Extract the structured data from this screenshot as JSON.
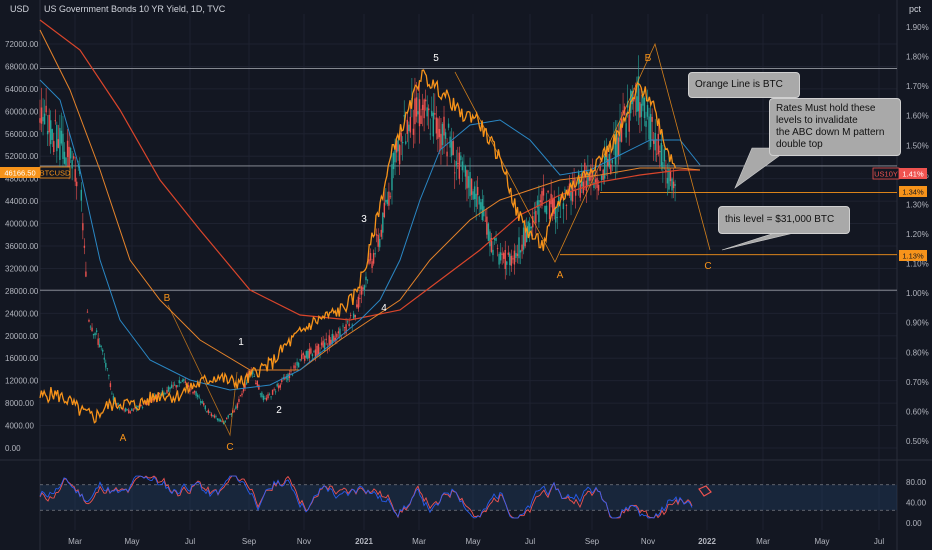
{
  "header": {
    "left_unit": "USD",
    "title": "US Government Bonds 10 YR Yield, 1D, TVC",
    "right_unit": "pct"
  },
  "colors": {
    "background": "#131722",
    "btc_line": "#f7931a",
    "ema_slow": "#d9452b",
    "ema_mid": "#e5832a",
    "ma_blue": "#2a87c4",
    "candle_up": "#26a69a",
    "candle_down": "#ef5350",
    "rsi_blue": "#2962ff",
    "rsi_red": "#ef5350",
    "level_orange": "#f7931a",
    "badge_red": "#ef5350"
  },
  "annotations": {
    "orange_line_note": "Orange Line is BTC",
    "rates_note": "Rates Must hold these\nlevels to invalidate\nthe ABC down M pattern\ndouble top",
    "level_note": "this level = $31,000 BTC"
  },
  "badges": {
    "btc_price": "46166.50",
    "btc_symbol": "BTCUSD",
    "us10y_symbol": "US10Y",
    "us10y_value": "1.41%",
    "level_1": "1.34%",
    "level_2": "1.13%"
  },
  "chart_data": {
    "type": "line",
    "left_axis": {
      "unit": "USD",
      "ticks": [
        "72000.00",
        "68000.00",
        "64000.00",
        "60000.00",
        "56000.00",
        "52000.00",
        "48000.00",
        "44000.00",
        "40000.00",
        "36000.00",
        "32000.00",
        "28000.00",
        "24000.00",
        "20000.00",
        "16000.00",
        "12000.00",
        "8000.00",
        "4000.00",
        "0.00"
      ],
      "ylim": [
        0,
        74000
      ]
    },
    "right_axis": {
      "unit": "pct",
      "ticks": [
        "1.90%",
        "1.80%",
        "1.70%",
        "1.60%",
        "1.50%",
        "1.40%",
        "1.30%",
        "1.20%",
        "1.10%",
        "1.00%",
        "0.90%",
        "0.80%",
        "0.70%",
        "0.60%",
        "0.50%"
      ],
      "ylim": [
        0.45,
        1.95
      ]
    },
    "x_axis": {
      "ticks": [
        "Mar",
        "May",
        "Jul",
        "Sep",
        "Nov",
        "2021",
        "Mar",
        "May",
        "Jul",
        "Sep",
        "Nov",
        "2022",
        "Mar",
        "May",
        "Jul"
      ]
    },
    "wave_labels": [
      {
        "label": "A",
        "year": 2020.32,
        "price": 3000,
        "color": "orange"
      },
      {
        "label": "B",
        "year": 2020.48,
        "price": 25500,
        "color": "orange"
      },
      {
        "label": "C",
        "year": 2020.65,
        "price": -500,
        "color": "orange"
      },
      {
        "label": "1",
        "year": 2020.7,
        "price": 15500,
        "color": "white"
      },
      {
        "label": "2",
        "year": 2020.74,
        "price": 6000,
        "color": "white"
      },
      {
        "label": "3",
        "year": 2021.0,
        "price": 39000,
        "color": "white"
      },
      {
        "label": "4",
        "year": 2021.05,
        "price": 21500,
        "color": "white"
      },
      {
        "label": "5",
        "year": 2021.2,
        "price": 66000,
        "color": "white"
      },
      {
        "label": "A",
        "year": 2021.56,
        "price": 27500,
        "color": "orange"
      },
      {
        "label": "B",
        "year": 2021.85,
        "price": 66000,
        "color": "orange"
      },
      {
        "label": "C",
        "year": 2021.95,
        "price": 30000,
        "color": "orange"
      }
    ],
    "series": [
      {
        "name": "BTCUSD",
        "x": [
          2020.08,
          2020.12,
          2020.16,
          2020.2,
          2020.22,
          2020.26,
          2020.3,
          2020.34,
          2020.38,
          2020.42,
          2020.46,
          2020.5,
          2020.54,
          2020.58,
          2020.62,
          2020.66,
          2020.7,
          2020.74,
          2020.78,
          2020.82,
          2020.86,
          2020.9,
          2020.94,
          2020.98,
          2021.0,
          2021.04,
          2021.08,
          2021.12,
          2021.16,
          2021.2,
          2021.24,
          2021.28,
          2021.32,
          2021.36,
          2021.4,
          2021.44,
          2021.48,
          2021.52,
          2021.56,
          2021.6,
          2021.64,
          2021.68,
          2021.72,
          2021.76,
          2021.8,
          2021.84,
          2021.88,
          2021.92,
          2021.95
        ],
        "y": [
          60000,
          56000,
          52000,
          47000,
          24000,
          18000,
          8000,
          6500,
          7500,
          9000,
          10500,
          12000,
          9500,
          6000,
          4500,
          7500,
          14000,
          8500,
          11000,
          13500,
          16500,
          17500,
          19500,
          21000,
          23000,
          31000,
          38000,
          50000,
          58000,
          60500,
          58000,
          55000,
          49000,
          46000,
          38000,
          33000,
          35000,
          39000,
          44000,
          42000,
          45000,
          48000,
          47500,
          51000,
          58000,
          63000,
          56000,
          50000,
          46500
        ]
      },
      {
        "name": "US10Y",
        "x": [
          2020.08,
          2020.12,
          2020.16,
          2020.2,
          2020.24,
          2020.28,
          2020.32,
          2020.36,
          2020.4,
          2020.44,
          2020.48,
          2020.52,
          2020.56,
          2020.6,
          2020.64,
          2020.68,
          2020.72,
          2020.76,
          2020.8,
          2020.84,
          2020.88,
          2020.92,
          2020.96,
          2021.0,
          2021.04,
          2021.08,
          2021.12,
          2021.16,
          2021.2,
          2021.24,
          2021.28,
          2021.32,
          2021.36,
          2021.4,
          2021.44,
          2021.48,
          2021.52,
          2021.56,
          2021.6,
          2021.64,
          2021.68,
          2021.72,
          2021.76,
          2021.8,
          2021.84,
          2021.88,
          2021.92,
          2021.95
        ],
        "y": [
          0.65,
          0.66,
          0.64,
          0.6,
          0.58,
          0.62,
          0.63,
          0.62,
          0.64,
          0.66,
          0.65,
          0.68,
          0.7,
          0.72,
          0.7,
          0.7,
          0.74,
          0.76,
          0.82,
          0.86,
          0.9,
          0.92,
          0.94,
          0.98,
          1.1,
          1.3,
          1.5,
          1.6,
          1.74,
          1.7,
          1.66,
          1.6,
          1.6,
          1.52,
          1.44,
          1.28,
          1.2,
          1.16,
          1.3,
          1.36,
          1.4,
          1.45,
          1.5,
          1.58,
          1.7,
          1.65,
          1.5,
          1.42
        ]
      }
    ],
    "horizontal_levels": [
      {
        "axis": "right",
        "value": 1.76
      },
      {
        "axis": "right",
        "value": 1.43
      },
      {
        "axis": "right",
        "value": 1.34
      },
      {
        "axis": "right",
        "value": 1.13
      },
      {
        "axis": "right",
        "value": 1.01
      }
    ],
    "rsi": {
      "ticks": [
        "80.00",
        "40.00",
        "0.00"
      ],
      "ylim": [
        0,
        100
      ],
      "band": [
        25,
        75
      ]
    }
  }
}
